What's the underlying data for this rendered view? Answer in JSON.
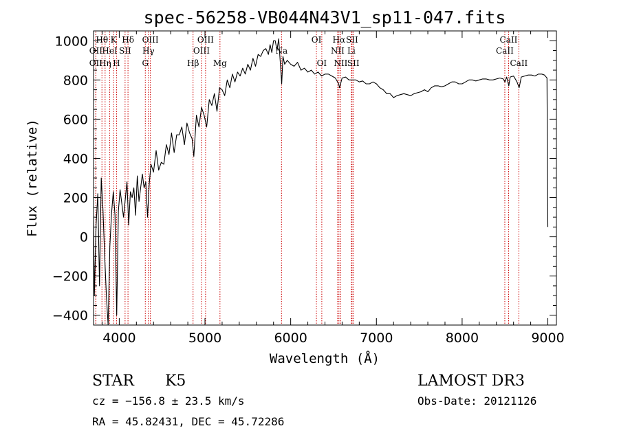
{
  "chart_data": {
    "type": "line",
    "title": "spec-56258-VB044N43V1_sp11-047.fits",
    "xlabel": "Wavelength (Å)",
    "ylabel": "Flux (relative)",
    "xlim": [
      3700,
      9100
    ],
    "ylim": [
      -450,
      1050
    ],
    "x_ticks": [
      {
        "value": 4000,
        "label": "4000"
      },
      {
        "value": 5000,
        "label": "5000"
      },
      {
        "value": 6000,
        "label": "6000"
      },
      {
        "value": 7000,
        "label": "7000"
      },
      {
        "value": 8000,
        "label": "8000"
      },
      {
        "value": 9000,
        "label": "9000"
      }
    ],
    "y_ticks": [
      {
        "value": -400,
        "label": "−400"
      },
      {
        "value": -200,
        "label": "−200"
      },
      {
        "value": 0,
        "label": "0"
      },
      {
        "value": 200,
        "label": "200"
      },
      {
        "value": 400,
        "label": "400"
      },
      {
        "value": 600,
        "label": "600"
      },
      {
        "value": 800,
        "label": "800"
      },
      {
        "value": 1000,
        "label": "1000"
      }
    ],
    "series": [
      {
        "name": "spectrum",
        "points": [
          [
            3700,
            100
          ],
          [
            3710,
            -300
          ],
          [
            3730,
            60
          ],
          [
            3750,
            220
          ],
          [
            3770,
            -250
          ],
          [
            3790,
            300
          ],
          [
            3810,
            140
          ],
          [
            3830,
            -100
          ],
          [
            3850,
            -300
          ],
          [
            3870,
            -450
          ],
          [
            3890,
            -50
          ],
          [
            3910,
            120
          ],
          [
            3930,
            230
          ],
          [
            3950,
            110
          ],
          [
            3970,
            -400
          ],
          [
            3990,
            130
          ],
          [
            4010,
            240
          ],
          [
            4030,
            170
          ],
          [
            4050,
            100
          ],
          [
            4070,
            190
          ],
          [
            4090,
            280
          ],
          [
            4110,
            60
          ],
          [
            4130,
            230
          ],
          [
            4150,
            200
          ],
          [
            4170,
            250
          ],
          [
            4190,
            110
          ],
          [
            4210,
            310
          ],
          [
            4230,
            180
          ],
          [
            4250,
            250
          ],
          [
            4270,
            320
          ],
          [
            4290,
            250
          ],
          [
            4310,
            280
          ],
          [
            4330,
            100
          ],
          [
            4350,
            270
          ],
          [
            4370,
            370
          ],
          [
            4400,
            330
          ],
          [
            4430,
            440
          ],
          [
            4460,
            340
          ],
          [
            4490,
            380
          ],
          [
            4520,
            370
          ],
          [
            4550,
            470
          ],
          [
            4580,
            420
          ],
          [
            4610,
            530
          ],
          [
            4640,
            430
          ],
          [
            4670,
            520
          ],
          [
            4700,
            520
          ],
          [
            4730,
            560
          ],
          [
            4760,
            470
          ],
          [
            4790,
            580
          ],
          [
            4820,
            530
          ],
          [
            4850,
            500
          ],
          [
            4870,
            410
          ],
          [
            4900,
            620
          ],
          [
            4930,
            560
          ],
          [
            4960,
            660
          ],
          [
            4990,
            620
          ],
          [
            5020,
            560
          ],
          [
            5050,
            700
          ],
          [
            5080,
            670
          ],
          [
            5110,
            730
          ],
          [
            5140,
            640
          ],
          [
            5170,
            760
          ],
          [
            5200,
            750
          ],
          [
            5230,
            720
          ],
          [
            5260,
            800
          ],
          [
            5290,
            760
          ],
          [
            5320,
            830
          ],
          [
            5350,
            790
          ],
          [
            5380,
            840
          ],
          [
            5410,
            820
          ],
          [
            5440,
            860
          ],
          [
            5470,
            830
          ],
          [
            5500,
            880
          ],
          [
            5530,
            850
          ],
          [
            5560,
            910
          ],
          [
            5590,
            870
          ],
          [
            5620,
            930
          ],
          [
            5650,
            920
          ],
          [
            5680,
            950
          ],
          [
            5710,
            960
          ],
          [
            5740,
            930
          ],
          [
            5760,
            980
          ],
          [
            5780,
            940
          ],
          [
            5800,
            1000
          ],
          [
            5820,
            1000
          ],
          [
            5840,
            950
          ],
          [
            5860,
            1010
          ],
          [
            5880,
            880
          ],
          [
            5895,
            780
          ],
          [
            5910,
            920
          ],
          [
            5930,
            880
          ],
          [
            5960,
            900
          ],
          [
            6000,
            880
          ],
          [
            6040,
            870
          ],
          [
            6080,
            890
          ],
          [
            6120,
            850
          ],
          [
            6160,
            860
          ],
          [
            6200,
            840
          ],
          [
            6240,
            850
          ],
          [
            6280,
            830
          ],
          [
            6320,
            840
          ],
          [
            6360,
            820
          ],
          [
            6400,
            830
          ],
          [
            6440,
            830
          ],
          [
            6480,
            820
          ],
          [
            6520,
            810
          ],
          [
            6560,
            780
          ],
          [
            6570,
            760
          ],
          [
            6600,
            810
          ],
          [
            6640,
            815
          ],
          [
            6680,
            800
          ],
          [
            6720,
            800
          ],
          [
            6760,
            800
          ],
          [
            6800,
            790
          ],
          [
            6840,
            795
          ],
          [
            6880,
            780
          ],
          [
            6920,
            780
          ],
          [
            6960,
            790
          ],
          [
            7000,
            780
          ],
          [
            7040,
            760
          ],
          [
            7080,
            750
          ],
          [
            7120,
            730
          ],
          [
            7160,
            730
          ],
          [
            7200,
            710
          ],
          [
            7240,
            720
          ],
          [
            7280,
            725
          ],
          [
            7320,
            730
          ],
          [
            7360,
            725
          ],
          [
            7400,
            720
          ],
          [
            7440,
            730
          ],
          [
            7480,
            735
          ],
          [
            7520,
            740
          ],
          [
            7560,
            750
          ],
          [
            7600,
            740
          ],
          [
            7640,
            760
          ],
          [
            7680,
            770
          ],
          [
            7720,
            770
          ],
          [
            7760,
            765
          ],
          [
            7800,
            770
          ],
          [
            7840,
            780
          ],
          [
            7880,
            790
          ],
          [
            7920,
            790
          ],
          [
            7960,
            780
          ],
          [
            8000,
            780
          ],
          [
            8040,
            790
          ],
          [
            8080,
            800
          ],
          [
            8120,
            800
          ],
          [
            8160,
            795
          ],
          [
            8200,
            800
          ],
          [
            8240,
            805
          ],
          [
            8280,
            805
          ],
          [
            8320,
            800
          ],
          [
            8360,
            800
          ],
          [
            8400,
            805
          ],
          [
            8440,
            810
          ],
          [
            8480,
            805
          ],
          [
            8500,
            790
          ],
          [
            8520,
            815
          ],
          [
            8545,
            770
          ],
          [
            8560,
            815
          ],
          [
            8600,
            820
          ],
          [
            8640,
            790
          ],
          [
            8665,
            760
          ],
          [
            8690,
            815
          ],
          [
            8730,
            820
          ],
          [
            8770,
            825
          ],
          [
            8810,
            825
          ],
          [
            8850,
            820
          ],
          [
            8890,
            830
          ],
          [
            8930,
            830
          ],
          [
            8960,
            825
          ],
          [
            8990,
            810
          ],
          [
            9000,
            50
          ]
        ]
      }
    ],
    "line_markers": [
      {
        "label": "Hθ",
        "x": 3798,
        "row": 1
      },
      {
        "label": "OII",
        "x": 3727,
        "row": 2
      },
      {
        "label": "OII",
        "x": 3727,
        "row": 3
      },
      {
        "label": "K",
        "x": 3934,
        "row": 1
      },
      {
        "label": "Hη",
        "x": 3835,
        "row": 3
      },
      {
        "label": "HeI",
        "x": 3889,
        "row": 2
      },
      {
        "label": "SII",
        "x": 4068,
        "row": 2
      },
      {
        "label": "H",
        "x": 3968,
        "row": 3
      },
      {
        "label": "Hδ",
        "x": 4102,
        "row": 1
      },
      {
        "label": "OIII",
        "x": 4363,
        "row": 1
      },
      {
        "label": "Hγ",
        "x": 4340,
        "row": 2
      },
      {
        "label": "G",
        "x": 4304,
        "row": 3
      },
      {
        "label": "OIII",
        "x": 5007,
        "row": 1
      },
      {
        "label": "OIII",
        "x": 4959,
        "row": 2
      },
      {
        "label": "Hβ",
        "x": 4861,
        "row": 3
      },
      {
        "label": "Mg",
        "x": 5175,
        "row": 3
      },
      {
        "label": "Na",
        "x": 5893,
        "row": 2
      },
      {
        "label": "OI",
        "x": 6300,
        "row": 1
      },
      {
        "label": "OI",
        "x": 6363,
        "row": 3
      },
      {
        "label": "Hα",
        "x": 6563,
        "row": 1
      },
      {
        "label": "SII",
        "x": 6716,
        "row": 1
      },
      {
        "label": "NII",
        "x": 6548,
        "row": 2
      },
      {
        "label": "Li",
        "x": 6708,
        "row": 2
      },
      {
        "label": "NII",
        "x": 6584,
        "row": 3
      },
      {
        "label": "SII",
        "x": 6731,
        "row": 3
      },
      {
        "label": "CaII",
        "x": 8542,
        "row": 1
      },
      {
        "label": "CaII",
        "x": 8498,
        "row": 2
      },
      {
        "label": "CaII",
        "x": 8662,
        "row": 3
      }
    ]
  },
  "info": {
    "object_class": "STAR",
    "subclass": "K5",
    "survey": "LAMOST DR3",
    "cz": "cz = −156.8 ± 23.5 km/s",
    "obs_date": "Obs-Date: 20121126",
    "coords": "RA =  45.82431, DEC =  45.72286"
  },
  "colors": {
    "foreground": "#000000",
    "marker_line": "#cc0000",
    "background": "#ffffff"
  }
}
